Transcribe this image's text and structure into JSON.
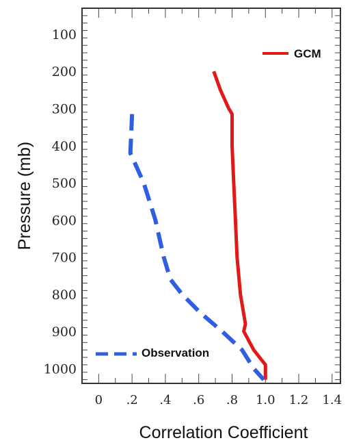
{
  "chart_data": {
    "type": "line",
    "xlabel": "Correlation Coefficient",
    "ylabel": "Pressure  (mb)",
    "xlim": [
      -0.1,
      1.45
    ],
    "ylim": [
      1040,
      30
    ],
    "x_ticks": [
      {
        "value": 0,
        "label": "0"
      },
      {
        "value": 0.2,
        "label": ".2"
      },
      {
        "value": 0.4,
        "label": ".4"
      },
      {
        "value": 0.6,
        "label": ".6"
      },
      {
        "value": 0.8,
        "label": ".8"
      },
      {
        "value": 1.0,
        "label": "1.0"
      },
      {
        "value": 1.2,
        "label": "1.2"
      },
      {
        "value": 1.4,
        "label": "1.4"
      }
    ],
    "y_ticks": [
      {
        "value": 100,
        "label": "100"
      },
      {
        "value": 200,
        "label": "200"
      },
      {
        "value": 300,
        "label": "300"
      },
      {
        "value": 400,
        "label": "400"
      },
      {
        "value": 500,
        "label": "500"
      },
      {
        "value": 600,
        "label": "600"
      },
      {
        "value": 700,
        "label": "700"
      },
      {
        "value": 800,
        "label": "800"
      },
      {
        "value": 900,
        "label": "900"
      },
      {
        "value": 1000,
        "label": "1000"
      }
    ],
    "series": [
      {
        "name": "GCM",
        "color": "#e11919",
        "style": "solid",
        "points": [
          [
            0.69,
            200
          ],
          [
            0.73,
            250
          ],
          [
            0.78,
            300
          ],
          [
            0.8,
            315
          ],
          [
            0.8,
            400
          ],
          [
            0.81,
            500
          ],
          [
            0.82,
            600
          ],
          [
            0.83,
            700
          ],
          [
            0.85,
            800
          ],
          [
            0.88,
            880
          ],
          [
            0.87,
            900
          ],
          [
            0.93,
            950
          ],
          [
            1.0,
            990
          ],
          [
            1.0,
            1030
          ]
        ]
      },
      {
        "name": "Observation",
        "color": "#2f5fe0",
        "style": "dashed",
        "points": [
          [
            0.2,
            315
          ],
          [
            0.19,
            420
          ],
          [
            0.27,
            500
          ],
          [
            0.34,
            600
          ],
          [
            0.39,
            700
          ],
          [
            0.43,
            760
          ],
          [
            0.5,
            800
          ],
          [
            0.61,
            850
          ],
          [
            0.74,
            900
          ],
          [
            0.86,
            950
          ],
          [
            0.93,
            1000
          ],
          [
            0.99,
            1030
          ]
        ]
      }
    ],
    "legend": [
      {
        "label": "GCM",
        "placement": "top-right"
      },
      {
        "label": "Observation",
        "placement": "bottom-left"
      }
    ],
    "grid": false
  }
}
